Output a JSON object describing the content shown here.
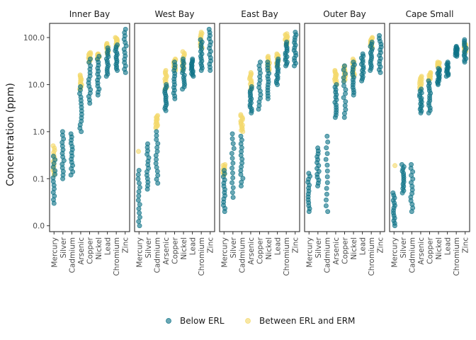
{
  "chart_data": {
    "type": "scatter",
    "ylabel": "Concentration (ppm)",
    "yscale": "log",
    "yticks": [
      {
        "value": 0.01,
        "label": "0.0"
      },
      {
        "value": 0.1,
        "label": "0.1"
      },
      {
        "value": 1,
        "label": "1.0"
      },
      {
        "value": 10,
        "label": "10.0"
      },
      {
        "value": 100,
        "label": "100.0"
      }
    ],
    "ylim": [
      0.0075,
      200
    ],
    "grid": false,
    "legend_position": "bottom",
    "categories": [
      "Mercury",
      "Silver",
      "Cadmium",
      "Arsenic",
      "Copper",
      "Nickel",
      "Lead",
      "Chromium",
      "Zinc"
    ],
    "series": [
      {
        "name": "Below ERL",
        "color": "#0e7387"
      },
      {
        "name": "Between ERL and ERM",
        "color": "#f3d96c"
      }
    ],
    "facets": [
      {
        "name": "Inner Bay",
        "groups": [
          {
            "below": [
              0.03,
              0.3
            ],
            "between": [
              0.12,
              0.5
            ]
          },
          {
            "below": [
              0.1,
              1.0
            ],
            "between": []
          },
          {
            "below": [
              0.12,
              0.9
            ],
            "between": []
          },
          {
            "below": [
              1.0,
              9.0
            ],
            "between": [
              8.0,
              16.0
            ]
          },
          {
            "below": [
              4.0,
              35.0
            ],
            "between": [
              30.0,
              48.0
            ]
          },
          {
            "below": [
              6.0,
              40.0
            ],
            "between": [
              35.0,
              45.0
            ]
          },
          {
            "below": [
              15.0,
              60.0
            ],
            "between": [
              45.0,
              75.0
            ]
          },
          {
            "below": [
              20.0,
              70.0
            ],
            "between": [
              65.0,
              100.0
            ]
          },
          {
            "below": [
              18.0,
              150.0
            ],
            "between": []
          }
        ]
      },
      {
        "name": "West Bay",
        "groups": [
          {
            "below": [
              0.01,
              0.15
            ],
            "between": [
              0.38,
              0.38
            ]
          },
          {
            "below": [
              0.06,
              0.55
            ],
            "between": []
          },
          {
            "below": [
              0.08,
              1.0
            ],
            "between": [
              1.2,
              2.2
            ]
          },
          {
            "below": [
              2.8,
              10.0
            ],
            "between": [
              8.0,
              20.0
            ]
          },
          {
            "below": [
              5.0,
              30.0
            ],
            "between": [
              20.0,
              35.0
            ]
          },
          {
            "below": [
              8.0,
              35.0
            ],
            "between": [
              20.0,
              50.0
            ]
          },
          {
            "below": [
              15.0,
              35.0
            ],
            "between": []
          },
          {
            "below": [
              20.0,
              90.0
            ],
            "between": [
              60.0,
              130.0
            ]
          },
          {
            "below": [
              20.0,
              150.0
            ],
            "between": []
          }
        ]
      },
      {
        "name": "East Bay",
        "groups": [
          {
            "below": [
              0.02,
              0.15
            ],
            "between": [
              0.12,
              0.2
            ]
          },
          {
            "below": [
              0.04,
              0.9
            ],
            "between": []
          },
          {
            "below": [
              0.07,
              0.8
            ],
            "between": [
              1.0,
              2.3
            ]
          },
          {
            "below": [
              2.5,
              9.0
            ],
            "between": [
              8.0,
              18.0
            ]
          },
          {
            "below": [
              3.0,
              30.0
            ],
            "between": []
          },
          {
            "below": [
              5.0,
              30.0
            ],
            "between": [
              20.0,
              40.0
            ]
          },
          {
            "below": [
              10.0,
              35.0
            ],
            "between": [
              25.0,
              45.0
            ]
          },
          {
            "below": [
              25.0,
              80.0
            ],
            "between": [
              70.0,
              120.0
            ]
          },
          {
            "below": [
              25.0,
              130.0
            ],
            "between": []
          }
        ]
      },
      {
        "name": "Outer Bay",
        "groups": [
          {
            "below": [
              0.02,
              0.13
            ],
            "between": []
          },
          {
            "below": [
              0.07,
              0.45
            ],
            "between": []
          },
          {
            "below": [
              0.02,
              0.8
            ],
            "between": []
          },
          {
            "below": [
              2.0,
              10.0
            ],
            "between": [
              10.0,
              20.0
            ]
          },
          {
            "below": [
              2.0,
              25.0
            ],
            "between": [
              12.0,
              25.0
            ]
          },
          {
            "below": [
              6.0,
              30.0
            ],
            "between": [
              15.0,
              35.0
            ]
          },
          {
            "below": [
              12.0,
              45.0
            ],
            "between": []
          },
          {
            "below": [
              20.0,
              80.0
            ],
            "between": [
              60.0,
              100.0
            ]
          },
          {
            "below": [
              18.0,
              110.0
            ],
            "between": []
          }
        ]
      },
      {
        "name": "Cape Small",
        "groups": [
          {
            "below": [
              0.01,
              0.05
            ],
            "between": [
              0.19,
              0.19
            ]
          },
          {
            "below": [
              0.05,
              0.2
            ],
            "between": []
          },
          {
            "below": [
              0.02,
              0.2
            ],
            "between": []
          },
          {
            "below": [
              2.5,
              8.0
            ],
            "between": [
              8.0,
              15.0
            ]
          },
          {
            "below": [
              2.5,
              12.0
            ],
            "between": [
              12.0,
              18.0
            ]
          },
          {
            "below": [
              10.0,
              22.0
            ],
            "between": [
              22.0,
              30.0
            ]
          },
          {
            "below": [
              15.0,
              30.0
            ],
            "between": []
          },
          {
            "below": [
              40.0,
              65.0
            ],
            "between": []
          },
          {
            "below": [
              30.0,
              90.0
            ],
            "between": [
              50.0,
              75.0
            ]
          }
        ]
      }
    ]
  }
}
